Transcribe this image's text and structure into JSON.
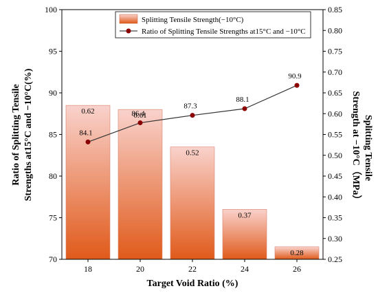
{
  "chart_data": {
    "type": "bar",
    "x": {
      "label": "Target Void Ratio (%)",
      "categories": [
        "18",
        "20",
        "22",
        "24",
        "26"
      ]
    },
    "y_left": {
      "label_lines": [
        "Ratio of Splitting Tensile",
        "Strengths at15°C and −10°C(%)"
      ],
      "range": [
        70,
        100
      ],
      "ticks": [
        70,
        75,
        80,
        85,
        90,
        95,
        100
      ],
      "tick_labels": [
        "70",
        "75",
        "80",
        "85",
        "90",
        "95",
        "100"
      ]
    },
    "y_right": {
      "label_lines": [
        "Splitting Tensile",
        "Strength at −10°C（MPa）"
      ],
      "range": [
        0.25,
        0.85
      ],
      "ticks": [
        0.25,
        0.3,
        0.35,
        0.4,
        0.45,
        0.5,
        0.55,
        0.6,
        0.65,
        0.7,
        0.75,
        0.8,
        0.85
      ],
      "tick_labels": [
        "0.25",
        "0.30",
        "0.35",
        "0.40",
        "0.45",
        "0.50",
        "0.55",
        "0.60",
        "0.65",
        "0.70",
        "0.75",
        "0.80",
        "0.85"
      ]
    },
    "series": [
      {
        "name": "Splitting Tensile Strength(−10°C)",
        "type": "bar",
        "axis": "right",
        "values": [
          0.62,
          0.61,
          0.52,
          0.37,
          0.28
        ],
        "labels": [
          "0.62",
          "0.61",
          "0.52",
          "0.37",
          "0.28"
        ],
        "color_top": "#f9d2cc",
        "color_bottom": "#e05a1a"
      },
      {
        "name": "Ratio of Splitting Tensile Strengths at15°C and −10°C",
        "type": "line",
        "axis": "left",
        "values": [
          84.1,
          86.4,
          87.3,
          88.1,
          90.9
        ],
        "labels": [
          "84.1",
          "86.4",
          "87.3",
          "88.1",
          "90.9"
        ],
        "color": "#8b0000"
      }
    ],
    "legend_position": "top-center",
    "grid": false
  }
}
